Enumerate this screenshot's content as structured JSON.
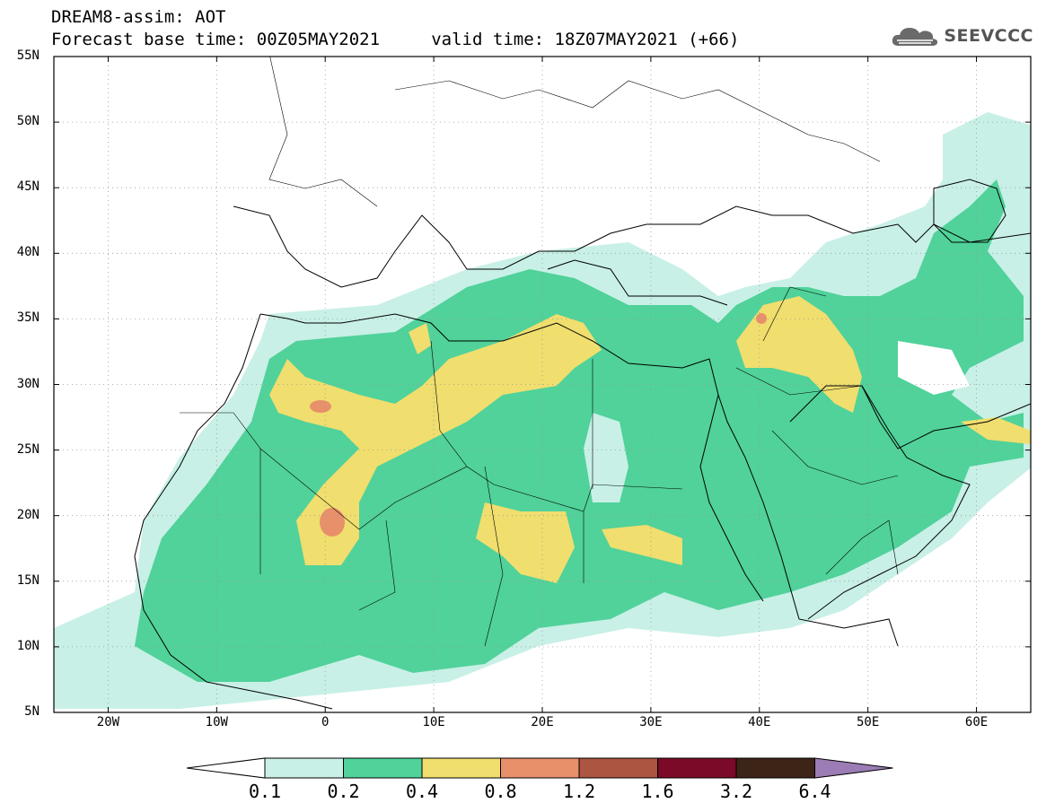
{
  "header": {
    "line1": "DREAM8-assim: AOT",
    "line2": "Forecast base time: 00Z05MAY2021     valid time: 18Z07MAY2021 (+66)"
  },
  "logo": {
    "text": "SEEVCCC",
    "icon": "cloud-icon"
  },
  "map": {
    "extent": {
      "lon_min": -25,
      "lon_max": 65,
      "lat_min": 5,
      "lat_max": 55
    },
    "lat_labels": [
      "55N",
      "50N",
      "45N",
      "40N",
      "35N",
      "30N",
      "25N",
      "20N",
      "15N",
      "10N",
      "5N"
    ],
    "lon_labels": [
      "20W",
      "10W",
      "0",
      "10E",
      "20E",
      "30E",
      "40E",
      "50E",
      "60E"
    ]
  },
  "colorbar": {
    "colors": [
      "#ffffff",
      "#c8f0e6",
      "#50d29a",
      "#f0de6e",
      "#e8906a",
      "#ac5540",
      "#7a0a28",
      "#3c2416",
      "#9c7cb4"
    ],
    "labels": [
      "0.1",
      "0.2",
      "0.4",
      "0.8",
      "1.2",
      "1.6",
      "3.2",
      "6.4"
    ]
  }
}
